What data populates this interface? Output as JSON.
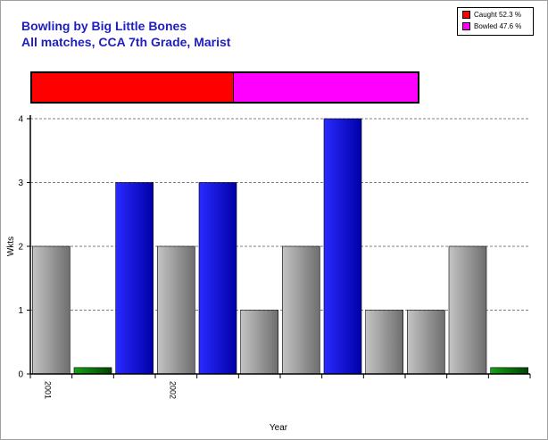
{
  "chart_data": {
    "type": "bar",
    "title": "Bowling by Big Little Bones",
    "subtitle": "All matches, CCA 7th Grade, Marist",
    "xlabel": "Year",
    "ylabel": "Wkts",
    "ylim": [
      0,
      4
    ],
    "yticks": [
      0,
      1,
      2,
      3,
      4
    ],
    "grid": true,
    "legend_position": "top-right",
    "x_tick_labels": [
      "2001",
      "",
      "",
      "2002",
      "",
      "",
      "",
      "",
      "",
      "",
      "",
      ""
    ],
    "values": [
      2,
      0.1,
      3,
      2,
      3,
      1,
      2,
      4,
      1,
      1,
      2,
      0.1
    ],
    "bar_colors": [
      "gray",
      "green",
      "blue",
      "gray",
      "blue",
      "gray",
      "gray",
      "blue",
      "gray",
      "gray",
      "gray",
      "green"
    ],
    "share": [
      {
        "name": "Caught",
        "label": "Caught 52.3 %",
        "percent": 52.3,
        "color": "#ff0000"
      },
      {
        "name": "Bowled",
        "label": "Bowled 47.6 %",
        "percent": 47.6,
        "color": "#ff00ff"
      }
    ]
  },
  "colors": {
    "title": "#1f1fbf",
    "gray_light": "#c4c4c4",
    "gray_dark": "#6e6e6e",
    "blue_light": "#2a2aff",
    "blue_dark": "#0000a8",
    "green_light": "#18a018",
    "green_dark": "#004400",
    "grid": "#808080"
  }
}
